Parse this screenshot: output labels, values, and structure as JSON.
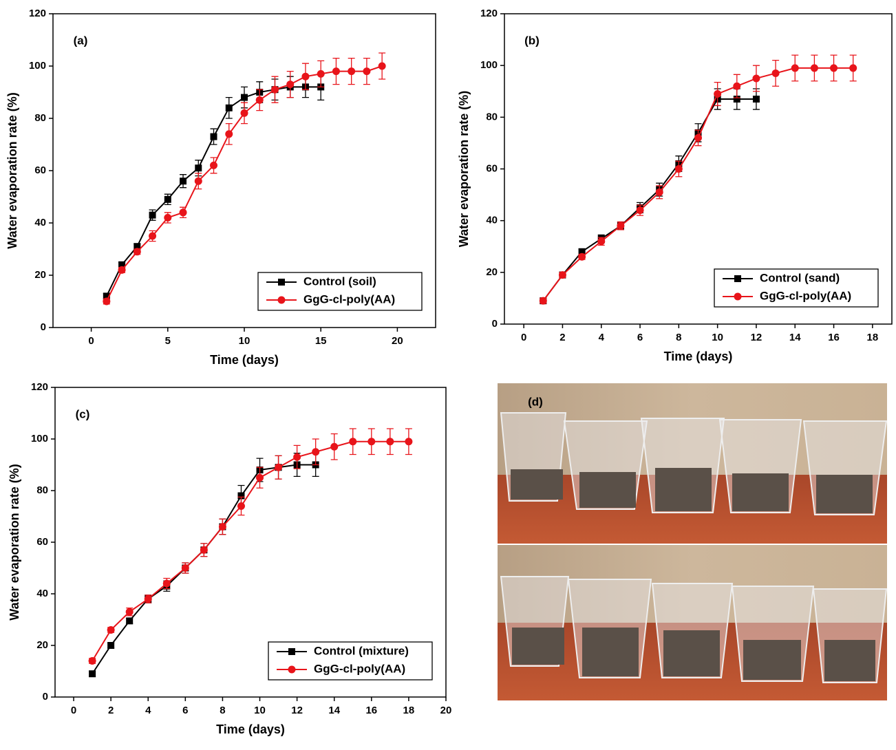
{
  "chart_data": [
    {
      "type": "line",
      "panel_label": "(a)",
      "x_label": "Time (days)",
      "y_label": "Water evaporation rate (%)",
      "xlim": [
        -2.5,
        22.5
      ],
      "xticks": [
        0,
        5,
        10,
        15,
        20
      ],
      "ylim": [
        0,
        120
      ],
      "yticks": [
        0,
        20,
        40,
        60,
        80,
        100,
        120
      ],
      "legend": "lower right",
      "series": [
        {
          "name": "Control (soil)",
          "color": "#000000",
          "marker": "square",
          "x": [
            1,
            2,
            3,
            4,
            5,
            6,
            7,
            8,
            9,
            10,
            11,
            12,
            13,
            14,
            15
          ],
          "values": [
            12,
            24,
            31,
            43,
            49,
            56,
            61,
            73,
            84,
            88,
            90,
            91,
            92,
            92,
            92
          ],
          "errors": [
            1,
            1,
            1,
            2,
            2,
            2.5,
            3,
            3,
            4,
            4,
            4,
            4,
            4,
            4,
            5
          ]
        },
        {
          "name": "GgG-cl-poly(AA)",
          "color": "#e8141a",
          "marker": "circle",
          "x": [
            1,
            2,
            3,
            4,
            5,
            6,
            7,
            8,
            9,
            10,
            11,
            12,
            13,
            14,
            15,
            16,
            17,
            18,
            19
          ],
          "values": [
            10,
            22,
            29,
            35,
            42,
            44,
            56,
            62,
            74,
            82,
            87,
            91,
            93,
            96,
            97,
            98,
            98,
            98,
            100
          ],
          "errors": [
            1,
            1,
            1,
            2,
            2,
            2,
            3,
            3,
            4,
            4,
            4,
            5,
            5,
            5,
            5,
            5,
            5,
            5,
            5
          ]
        }
      ]
    },
    {
      "type": "line",
      "panel_label": "(b)",
      "x_label": "Time (days)",
      "y_label": "Water evaporation rate (%)",
      "xlim": [
        -1,
        19
      ],
      "xticks": [
        0,
        2,
        4,
        6,
        8,
        10,
        12,
        14,
        16,
        18
      ],
      "ylim": [
        0,
        120
      ],
      "yticks": [
        0,
        20,
        40,
        60,
        80,
        100,
        120
      ],
      "legend": "lower right",
      "series": [
        {
          "name": "Control (sand)",
          "color": "#000000",
          "marker": "square",
          "x": [
            1,
            2,
            3,
            4,
            5,
            6,
            7,
            8,
            9,
            10,
            11,
            12
          ],
          "values": [
            9,
            19,
            28,
            33,
            38,
            45,
            52,
            62,
            74,
            87,
            87,
            87
          ],
          "errors": [
            1,
            1,
            1,
            1.5,
            1.5,
            2,
            2.5,
            3,
            3.5,
            4,
            4,
            4
          ]
        },
        {
          "name": "GgG-cl-poly(AA)",
          "color": "#e8141a",
          "marker": "circle",
          "x": [
            1,
            2,
            3,
            4,
            5,
            6,
            7,
            8,
            9,
            10,
            11,
            12,
            13,
            14,
            15,
            16,
            17
          ],
          "values": [
            9,
            19,
            26,
            32,
            38,
            44,
            51,
            60,
            72,
            89,
            92,
            95,
            97,
            99,
            99,
            99,
            99
          ],
          "errors": [
            1,
            1,
            1,
            1.5,
            1.5,
            2,
            2.5,
            3,
            3,
            4.5,
            4.5,
            5,
            5,
            5,
            5,
            5,
            5
          ]
        }
      ]
    },
    {
      "type": "line",
      "panel_label": "(c)",
      "x_label": "Time (days)",
      "y_label": "Water evaporation rate (%)",
      "xlim": [
        -1,
        20
      ],
      "xticks": [
        0,
        2,
        4,
        6,
        8,
        10,
        12,
        14,
        16,
        18,
        20
      ],
      "ylim": [
        0,
        120
      ],
      "yticks": [
        0,
        20,
        40,
        60,
        80,
        100,
        120
      ],
      "legend": "lower right",
      "series": [
        {
          "name": "Control (mixture)",
          "color": "#000000",
          "marker": "square",
          "x": [
            1,
            2,
            3,
            4,
            5,
            6,
            7,
            8,
            9,
            10,
            11,
            12,
            13
          ],
          "values": [
            9,
            20,
            29.5,
            38,
            43,
            50,
            57,
            66,
            78,
            88,
            89,
            90,
            90
          ],
          "errors": [
            1,
            1,
            1,
            1.5,
            2,
            2,
            2.5,
            3,
            4,
            4.5,
            4.5,
            4.5,
            4.5
          ]
        },
        {
          "name": "GgG-cl-poly(AA)",
          "color": "#e8141a",
          "marker": "circle",
          "x": [
            1,
            2,
            3,
            4,
            5,
            6,
            7,
            8,
            9,
            10,
            11,
            12,
            13,
            14,
            15,
            16,
            17,
            18
          ],
          "values": [
            14,
            26,
            33,
            38,
            44,
            50,
            57,
            66,
            74,
            85,
            89,
            93,
            95,
            97,
            99,
            99,
            99,
            99
          ],
          "errors": [
            1,
            1,
            1.5,
            1.5,
            2,
            2,
            2.5,
            3,
            3.5,
            4,
            4.5,
            4.5,
            5,
            5,
            5,
            5,
            5,
            5
          ]
        }
      ]
    }
  ],
  "photo": {
    "label": "(d)"
  }
}
